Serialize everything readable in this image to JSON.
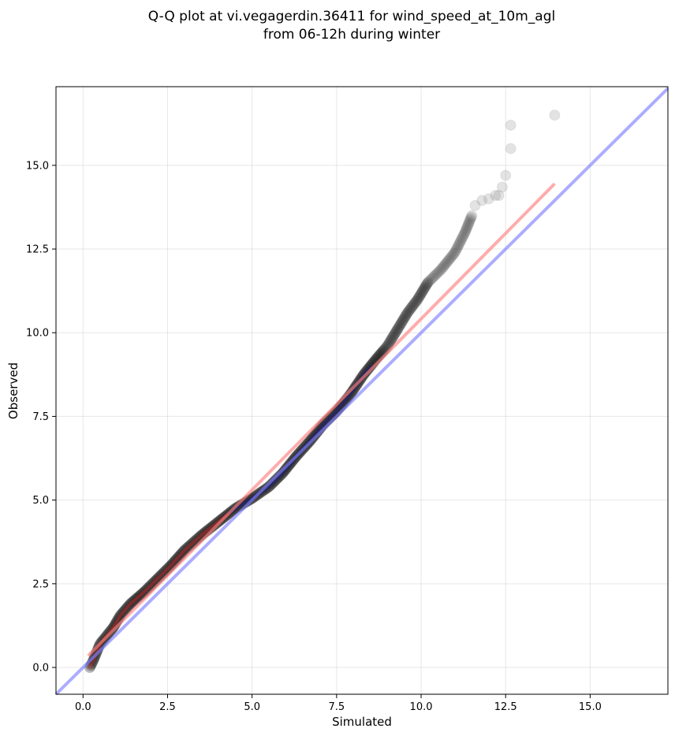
{
  "chart_data": {
    "type": "scatter",
    "title_line1": "Q-Q plot at vi.vegagerdin.36411 for wind_speed_at_10m_agl",
    "title_line2": "from 06-12h during winter",
    "xlabel": "Simulated",
    "ylabel": "Observed",
    "xlim": [
      -0.8,
      17.3
    ],
    "ylim": [
      -0.8,
      17.35
    ],
    "xticks": [
      0.0,
      2.5,
      5.0,
      7.5,
      10.0,
      12.5,
      15.0
    ],
    "yticks": [
      0.0,
      2.5,
      5.0,
      7.5,
      10.0,
      12.5,
      15.0
    ],
    "xtick_labels": [
      "0.0",
      "2.5",
      "5.0",
      "7.5",
      "10.0",
      "12.5",
      "15.0"
    ],
    "ytick_labels": [
      "0.0",
      "2.5",
      "5.0",
      "7.5",
      "10.0",
      "12.5",
      "15.0"
    ],
    "grid": true,
    "identity_line": {
      "color": "#7f7fff",
      "from": [
        -0.8,
        -0.8
      ],
      "to": [
        17.3,
        17.3
      ]
    },
    "fit_line": {
      "color": "#ff7f7f",
      "from": [
        0.15,
        0.35
      ],
      "to": [
        13.95,
        14.45
      ]
    },
    "points_color": "#000000",
    "inner_color_low": "#d62728",
    "inner_color_mid": "#1f1f8f",
    "quantile_curve": [
      [
        0.2,
        0.0
      ],
      [
        0.3,
        0.2
      ],
      [
        0.4,
        0.45
      ],
      [
        0.5,
        0.7
      ],
      [
        0.7,
        0.95
      ],
      [
        0.9,
        1.2
      ],
      [
        1.1,
        1.55
      ],
      [
        1.4,
        1.9
      ],
      [
        1.8,
        2.25
      ],
      [
        2.2,
        2.65
      ],
      [
        2.6,
        3.05
      ],
      [
        3.0,
        3.5
      ],
      [
        3.5,
        3.95
      ],
      [
        4.0,
        4.35
      ],
      [
        4.5,
        4.75
      ],
      [
        5.0,
        5.05
      ],
      [
        5.5,
        5.4
      ],
      [
        5.9,
        5.8
      ],
      [
        6.3,
        6.3
      ],
      [
        6.7,
        6.75
      ],
      [
        7.1,
        7.25
      ],
      [
        7.5,
        7.65
      ],
      [
        7.9,
        8.15
      ],
      [
        8.3,
        8.75
      ],
      [
        8.7,
        9.25
      ],
      [
        9.0,
        9.6
      ],
      [
        9.3,
        10.1
      ],
      [
        9.6,
        10.6
      ],
      [
        9.9,
        11.0
      ],
      [
        10.2,
        11.5
      ],
      [
        10.6,
        11.9
      ],
      [
        11.0,
        12.4
      ],
      [
        11.3,
        13.0
      ],
      [
        11.5,
        13.5
      ]
    ],
    "tail_points": [
      [
        11.6,
        13.8
      ],
      [
        11.8,
        13.95
      ],
      [
        12.0,
        14.0
      ],
      [
        12.2,
        14.1
      ],
      [
        12.3,
        14.1
      ],
      [
        12.4,
        14.35
      ],
      [
        12.5,
        14.7
      ],
      [
        12.65,
        15.5
      ],
      [
        12.65,
        16.2
      ],
      [
        13.95,
        16.5
      ]
    ]
  }
}
